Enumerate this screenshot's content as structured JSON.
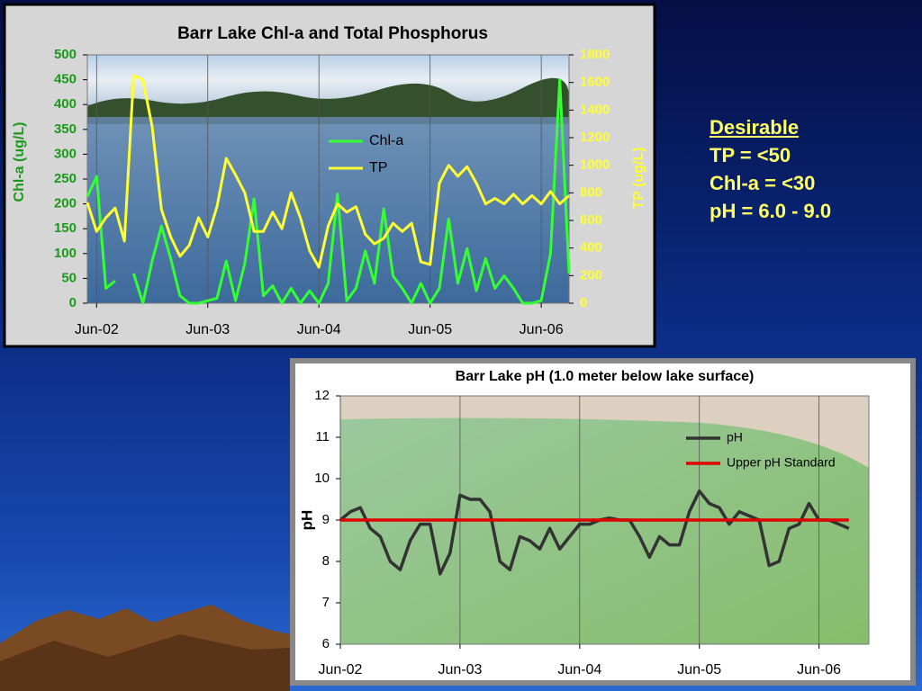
{
  "chart_data": [
    {
      "type": "line",
      "title": "Barr Lake Chl-a and Total Phosphorus",
      "y_label": "Chl-a (ug/L)",
      "y2_label": "TP (ug/L)",
      "x": [
        "2002-05",
        "2002-06",
        "2002-07",
        "2002-08",
        "2002-09",
        "2002-10",
        "2002-11",
        "2002-12",
        "2003-01",
        "2003-02",
        "2003-03",
        "2003-04",
        "2003-05",
        "2003-06",
        "2003-07",
        "2003-08",
        "2003-09",
        "2003-10",
        "2003-11",
        "2003-12",
        "2004-01",
        "2004-02",
        "2004-03",
        "2004-04",
        "2004-05",
        "2004-06",
        "2004-07",
        "2004-08",
        "2004-09",
        "2004-10",
        "2004-11",
        "2004-12",
        "2005-01",
        "2005-02",
        "2005-03",
        "2005-04",
        "2005-05",
        "2005-06",
        "2005-07",
        "2005-08",
        "2005-09",
        "2005-10",
        "2005-11",
        "2005-12",
        "2006-01",
        "2006-02",
        "2006-03",
        "2006-04",
        "2006-05",
        "2006-06",
        "2006-07",
        "2006-08",
        "2006-09"
      ],
      "series": [
        {
          "name": "Chl-a",
          "color": "#33ff33",
          "axis": "y",
          "values": [
            215,
            255,
            30,
            45,
            null,
            60,
            0,
            85,
            155,
            90,
            15,
            0,
            0,
            5,
            10,
            85,
            5,
            80,
            210,
            15,
            35,
            0,
            30,
            0,
            25,
            0,
            40,
            220,
            5,
            30,
            105,
            40,
            190,
            55,
            30,
            0,
            40,
            0,
            30,
            170,
            40,
            110,
            25,
            90,
            30,
            55,
            30,
            0,
            0,
            5,
            100,
            450,
            60
          ]
        },
        {
          "name": "TP",
          "color": "#ffff33",
          "axis": "y2",
          "values": [
            730,
            520,
            620,
            690,
            450,
            1650,
            1620,
            1280,
            680,
            480,
            340,
            420,
            620,
            480,
            700,
            1050,
            930,
            800,
            520,
            520,
            660,
            540,
            800,
            620,
            380,
            260,
            560,
            720,
            660,
            700,
            500,
            430,
            470,
            580,
            520,
            580,
            300,
            280,
            870,
            1000,
            920,
            990,
            870,
            720,
            760,
            720,
            790,
            720,
            780,
            720,
            810,
            720,
            780
          ]
        }
      ],
      "xlim": [
        "2002-05",
        "2006-09"
      ],
      "xticks": [
        {
          "value": "2002-06",
          "label": "Jun-02"
        },
        {
          "value": "2003-06",
          "label": "Jun-03"
        },
        {
          "value": "2004-06",
          "label": "Jun-04"
        },
        {
          "value": "2005-06",
          "label": "Jun-05"
        },
        {
          "value": "2006-06",
          "label": "Jun-06"
        }
      ],
      "ylim": [
        0,
        500
      ],
      "yticks": [
        0,
        50,
        100,
        150,
        200,
        250,
        300,
        350,
        400,
        450,
        500
      ],
      "y2lim": [
        0,
        1800
      ],
      "y2ticks": [
        0,
        200,
        400,
        600,
        800,
        1000,
        1200,
        1400,
        1600,
        1800
      ],
      "grid": "x",
      "legend": "center"
    },
    {
      "type": "line",
      "title": "Barr Lake pH (1.0 meter below lake surface)",
      "y_label": "pH",
      "x": [
        "2002-06",
        "2002-07",
        "2002-08",
        "2002-09",
        "2002-10",
        "2002-11",
        "2002-12",
        "2003-01",
        "2003-02",
        "2003-03",
        "2003-04",
        "2003-05",
        "2003-06",
        "2003-07",
        "2003-08",
        "2003-09",
        "2003-10",
        "2003-11",
        "2003-12",
        "2004-01",
        "2004-02",
        "2004-03",
        "2004-04",
        "2004-05",
        "2004-06",
        "2004-07",
        "2004-08",
        "2004-09",
        "2004-10",
        "2004-11",
        "2004-12",
        "2005-01",
        "2005-02",
        "2005-03",
        "2005-04",
        "2005-05",
        "2005-06",
        "2005-07",
        "2005-08",
        "2005-09",
        "2005-10",
        "2005-11",
        "2005-12",
        "2006-01",
        "2006-02",
        "2006-03",
        "2006-04",
        "2006-05",
        "2006-06",
        "2006-07",
        "2006-08",
        "2006-09"
      ],
      "series": [
        {
          "name": "pH",
          "color": "#333333",
          "values": [
            9.0,
            9.2,
            9.3,
            8.8,
            8.6,
            8.0,
            7.8,
            8.5,
            8.9,
            8.9,
            7.7,
            8.2,
            9.6,
            9.5,
            9.5,
            9.2,
            8.0,
            7.8,
            8.6,
            8.5,
            8.3,
            8.8,
            8.3,
            8.6,
            8.9,
            8.9,
            9.0,
            9.05,
            9.0,
            9.0,
            8.6,
            8.1,
            8.6,
            8.4,
            8.4,
            9.2,
            9.7,
            9.4,
            9.3,
            8.9,
            9.2,
            9.1,
            9.0,
            7.9,
            8.0,
            8.8,
            8.9,
            9.4,
            9.0,
            9.0,
            8.9,
            8.8
          ]
        },
        {
          "name": "Upper pH Standard",
          "color": "#e00000",
          "x": [
            "2002-06",
            "2006-09"
          ],
          "values": [
            9,
            9
          ]
        }
      ],
      "xlim": [
        "2002-06",
        "2006-11"
      ],
      "xticks": [
        {
          "value": "2002-06",
          "label": "Jun-02"
        },
        {
          "value": "2003-06",
          "label": "Jun-03"
        },
        {
          "value": "2004-06",
          "label": "Jun-04"
        },
        {
          "value": "2005-06",
          "label": "Jun-05"
        },
        {
          "value": "2006-06",
          "label": "Jun-06"
        }
      ],
      "ylim": [
        6,
        12
      ],
      "yticks": [
        6,
        7,
        8,
        9,
        10,
        11,
        12
      ],
      "grid": "x",
      "legend": "upper right"
    }
  ],
  "desirable_box": {
    "heading": "Desirable",
    "lines": [
      "TP = <50",
      "Chl-a = <30",
      "pH = 6.0 - 9.0"
    ]
  }
}
